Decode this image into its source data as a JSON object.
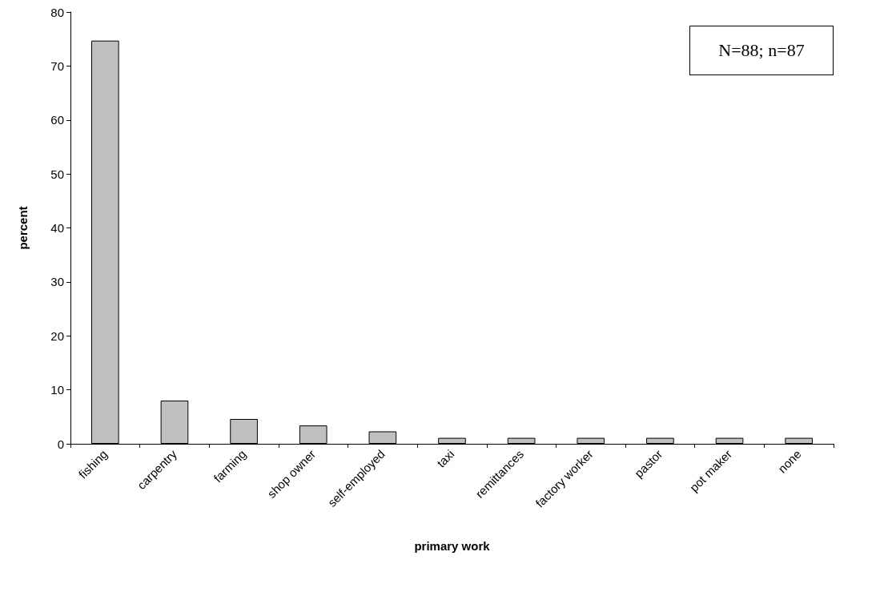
{
  "chart_data": {
    "type": "bar",
    "xlabel": "primary work",
    "ylabel": "percent",
    "categories": [
      "fishing",
      "carpentry",
      "farming",
      "shop owner",
      "self-employed",
      "taxi",
      "remittances",
      "factory worker",
      "pastor",
      "pot maker",
      "none"
    ],
    "values": [
      74.7,
      8.0,
      4.6,
      3.4,
      2.3,
      1.1,
      1.1,
      1.1,
      1.1,
      1.1,
      1.1
    ],
    "color": "#c0c0c0",
    "ylim": [
      0,
      80
    ],
    "yticks": [
      0,
      10,
      20,
      30,
      40,
      50,
      60,
      70,
      80
    ],
    "annotations": [
      "N=88; n=87"
    ]
  }
}
